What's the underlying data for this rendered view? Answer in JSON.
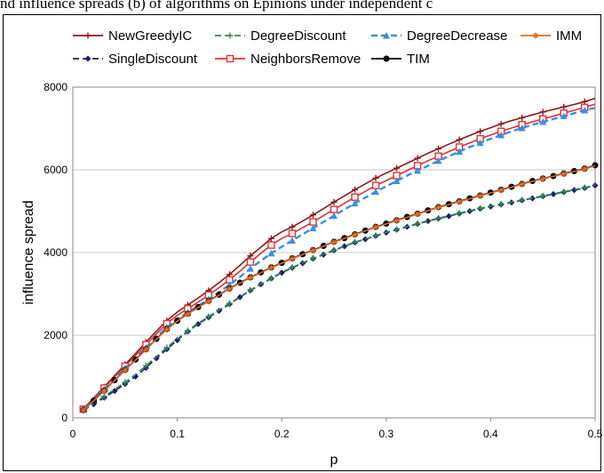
{
  "caption": "nd influence spreads (b) of algorithms on Epinions under independent c",
  "chart_data": {
    "type": "line",
    "title": "",
    "xlabel": "p",
    "ylabel": "influence spread",
    "xlim": [
      0,
      0.5
    ],
    "ylim": [
      0,
      8000
    ],
    "xticks": [
      0,
      0.1,
      0.2,
      0.3,
      0.4,
      0.5
    ],
    "yticks": [
      0,
      2000,
      4000,
      6000,
      8000
    ],
    "grid": "horizontal",
    "legend_position": "top",
    "x": [
      0.01,
      0.02,
      0.03,
      0.04,
      0.05,
      0.06,
      0.07,
      0.08,
      0.09,
      0.1,
      0.11,
      0.12,
      0.13,
      0.14,
      0.15,
      0.16,
      0.17,
      0.18,
      0.19,
      0.2,
      0.21,
      0.22,
      0.23,
      0.24,
      0.25,
      0.26,
      0.27,
      0.28,
      0.29,
      0.3,
      0.31,
      0.32,
      0.33,
      0.34,
      0.35,
      0.36,
      0.37,
      0.38,
      0.39,
      0.4,
      0.41,
      0.42,
      0.43,
      0.44,
      0.45,
      0.46,
      0.47,
      0.48,
      0.49,
      0.5
    ],
    "series": [
      {
        "name": "NewGreedyIC",
        "color": "#8b1a1a",
        "marker": "plus",
        "dash": "solid",
        "values": [
          220,
          480,
          750,
          1020,
          1290,
          1560,
          1830,
          2100,
          2350,
          2560,
          2730,
          2900,
          3080,
          3270,
          3470,
          3690,
          3920,
          4130,
          4340,
          4500,
          4620,
          4760,
          4910,
          5060,
          5220,
          5370,
          5520,
          5660,
          5800,
          5920,
          6040,
          6160,
          6280,
          6400,
          6510,
          6620,
          6730,
          6830,
          6930,
          7020,
          7110,
          7190,
          7260,
          7330,
          7400,
          7460,
          7520,
          7580,
          7650,
          7730
        ]
      },
      {
        "name": "SingleDiscount",
        "color": "#1c1c6e",
        "marker": "diamond",
        "dash": "dashed",
        "values": [
          180,
          330,
          490,
          650,
          820,
          1000,
          1210,
          1440,
          1660,
          1880,
          2090,
          2270,
          2430,
          2590,
          2750,
          2920,
          3080,
          3230,
          3370,
          3510,
          3630,
          3740,
          3850,
          3950,
          4050,
          4150,
          4240,
          4320,
          4400,
          4480,
          4550,
          4620,
          4690,
          4760,
          4820,
          4880,
          4940,
          5000,
          5060,
          5110,
          5160,
          5210,
          5260,
          5310,
          5360,
          5410,
          5460,
          5510,
          5560,
          5620
        ]
      },
      {
        "name": "DegreeDiscount",
        "color": "#2e8b57",
        "marker": "plus",
        "dash": "dashed",
        "values": [
          190,
          350,
          520,
          690,
          860,
          1050,
          1260,
          1480,
          1700,
          1910,
          2110,
          2290,
          2450,
          2610,
          2770,
          2930,
          3090,
          3240,
          3380,
          3520,
          3640,
          3750,
          3860,
          3960,
          4060,
          4160,
          4250,
          4330,
          4410,
          4490,
          4560,
          4630,
          4700,
          4770,
          4830,
          4890,
          4950,
          5010,
          5070,
          5120,
          5170,
          5220,
          5270,
          5320,
          5370,
          5420,
          5470,
          5520,
          5570,
          5630
        ]
      },
      {
        "name": "NeighborsRemove",
        "color": "#e03030",
        "marker": "square",
        "dash": "solid",
        "values": [
          210,
          460,
          720,
          990,
          1250,
          1510,
          1770,
          2030,
          2280,
          2480,
          2640,
          2800,
          2970,
          3150,
          3340,
          3550,
          3770,
          3980,
          4180,
          4340,
          4460,
          4600,
          4740,
          4890,
          5040,
          5190,
          5340,
          5480,
          5620,
          5740,
          5860,
          5980,
          6100,
          6220,
          6330,
          6440,
          6550,
          6650,
          6750,
          6840,
          6930,
          7010,
          7090,
          7160,
          7230,
          7300,
          7370,
          7440,
          7510,
          7590
        ]
      },
      {
        "name": "DegreeDecrease",
        "color": "#3a8fe0",
        "marker": "triangle",
        "dash": "dashed",
        "values": [
          200,
          440,
          690,
          950,
          1200,
          1450,
          1700,
          1950,
          2190,
          2390,
          2550,
          2710,
          2870,
          3040,
          3220,
          3410,
          3610,
          3800,
          3980,
          4140,
          4290,
          4440,
          4590,
          4740,
          4890,
          5040,
          5190,
          5330,
          5470,
          5600,
          5730,
          5860,
          5980,
          6100,
          6220,
          6330,
          6440,
          6550,
          6650,
          6750,
          6840,
          6930,
          7010,
          7090,
          7160,
          7230,
          7300,
          7370,
          7440,
          7500
        ]
      },
      {
        "name": "TIM",
        "color": "#000000",
        "marker": "circle",
        "dash": "solid",
        "values": [
          190,
          420,
          660,
          910,
          1160,
          1410,
          1660,
          1910,
          2150,
          2350,
          2520,
          2680,
          2830,
          2980,
          3130,
          3270,
          3400,
          3520,
          3640,
          3750,
          3860,
          3960,
          4060,
          4160,
          4260,
          4350,
          4440,
          4530,
          4620,
          4700,
          4780,
          4860,
          4940,
          5020,
          5100,
          5170,
          5240,
          5310,
          5380,
          5450,
          5520,
          5590,
          5660,
          5730,
          5790,
          5850,
          5910,
          5970,
          6030,
          6110
        ]
      },
      {
        "name": "IMM",
        "color": "#e06a2a",
        "marker": "star",
        "dash": "solid",
        "values": [
          185,
          410,
          650,
          900,
          1150,
          1400,
          1650,
          1900,
          2140,
          2340,
          2510,
          2670,
          2820,
          2970,
          3120,
          3260,
          3390,
          3510,
          3630,
          3740,
          3850,
          3950,
          4050,
          4150,
          4250,
          4340,
          4430,
          4520,
          4610,
          4690,
          4770,
          4850,
          4930,
          5010,
          5090,
          5160,
          5230,
          5300,
          5370,
          5440,
          5510,
          5580,
          5650,
          5720,
          5780,
          5840,
          5900,
          5960,
          6020,
          6100
        ]
      }
    ]
  }
}
